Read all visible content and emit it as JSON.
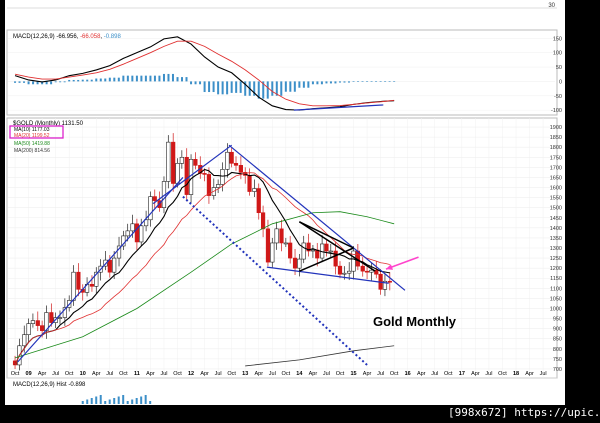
{
  "chart_data": [
    {
      "type": "line",
      "panel": "macd-top",
      "title": "MACD(12,26,9) -66.956, -66.058, -0.898",
      "legend": {
        "prefix": "MACD(12,26,9)",
        "macd": "-66.956",
        "signal": "-66.058",
        "hist": "-0.898"
      },
      "yticks": [
        "150",
        "100",
        "50",
        "0",
        "-50",
        "-100"
      ],
      "ylim": [
        -110,
        165
      ],
      "x": [
        2008.75,
        2009.0,
        2009.25,
        2009.5,
        2009.75,
        2010.0,
        2010.25,
        2010.5,
        2010.75,
        2011.0,
        2011.25,
        2011.5,
        2011.75,
        2012.0,
        2012.25,
        2012.5,
        2012.75,
        2013.0,
        2013.25,
        2013.5,
        2013.75,
        2014.0,
        2014.25,
        2014.5,
        2014.75,
        2015.0,
        2015.25,
        2015.5,
        2015.75
      ],
      "series": [
        {
          "name": "MACD",
          "color": "#000000",
          "values": [
            20,
            5,
            -2,
            5,
            20,
            28,
            40,
            55,
            80,
            100,
            120,
            148,
            155,
            130,
            85,
            50,
            30,
            -10,
            -55,
            -85,
            -98,
            -100,
            -95,
            -92,
            -88,
            -80,
            -74,
            -70,
            -67
          ]
        },
        {
          "name": "Signal",
          "color": "#e03030",
          "values": [
            25,
            15,
            8,
            8,
            15,
            22,
            30,
            42,
            60,
            80,
            100,
            122,
            140,
            140,
            122,
            95,
            70,
            40,
            5,
            -35,
            -62,
            -78,
            -85,
            -85,
            -84,
            -80,
            -75,
            -71,
            -66
          ]
        },
        {
          "name": "Histogram",
          "color": "#3c8fc8",
          "values": [
            -5,
            -10,
            -10,
            -3,
            5,
            6,
            10,
            13,
            20,
            20,
            20,
            26,
            15,
            -10,
            -37,
            -45,
            -40,
            -50,
            -60,
            -50,
            -36,
            -22,
            -10,
            -7,
            -4,
            0,
            1,
            1,
            -1
          ]
        }
      ],
      "divergence_line": {
        "x": [
          2013.9,
          2015.55
        ],
        "y": [
          -100,
          -82
        ]
      }
    },
    {
      "type": "candlestick",
      "panel": "price",
      "title": "$GOLD (Monthly) 1131.50",
      "legend_entries": [
        {
          "label": "MA(10) 1177.03",
          "color": "#000000"
        },
        {
          "label": "MA(20) 1199.52",
          "color": "#e03030"
        },
        {
          "label": "MA(50) 1419.88",
          "color": "#1a8a1a"
        },
        {
          "label": "MA(200) 814.56",
          "color": "#333333"
        }
      ],
      "annotation": "Gold Monthly",
      "yticks": [
        "1900",
        "1850",
        "1800",
        "1750",
        "1700",
        "1650",
        "1600",
        "1550",
        "1500",
        "1450",
        "1400",
        "1350",
        "1300",
        "1250",
        "1200",
        "1150",
        "1100",
        "1050",
        "1000",
        "950",
        "900",
        "850",
        "800",
        "750",
        "700"
      ],
      "ylim": [
        675,
        1925
      ],
      "xticks": [
        "Oct",
        "09",
        "Apr",
        "Jul",
        "Oct",
        "10",
        "Apr",
        "Jul",
        "Oct",
        "11",
        "Apr",
        "Jul",
        "Oct",
        "12",
        "Apr",
        "Jul",
        "Oct",
        "13",
        "Apr",
        "Jul",
        "Oct",
        "14",
        "Apr",
        "Jul",
        "Oct",
        "15",
        "Apr",
        "Jul",
        "Oct",
        "16",
        "Apr",
        "Jul",
        "Oct",
        "17",
        "Apr",
        "Jul",
        "Oct",
        "18",
        "Apr",
        "Jul"
      ],
      "x": [
        2008.75,
        2008.83,
        2008.92,
        2009.0,
        2009.08,
        2009.17,
        2009.25,
        2009.33,
        2009.42,
        2009.5,
        2009.58,
        2009.67,
        2009.75,
        2009.83,
        2009.92,
        2010.0,
        2010.08,
        2010.17,
        2010.25,
        2010.33,
        2010.42,
        2010.5,
        2010.58,
        2010.67,
        2010.75,
        2010.83,
        2010.92,
        2011.0,
        2011.08,
        2011.17,
        2011.25,
        2011.33,
        2011.42,
        2011.5,
        2011.58,
        2011.67,
        2011.75,
        2011.83,
        2011.92,
        2012.0,
        2012.08,
        2012.17,
        2012.25,
        2012.33,
        2012.42,
        2012.5,
        2012.58,
        2012.67,
        2012.75,
        2012.83,
        2012.92,
        2013.0,
        2013.08,
        2013.17,
        2013.25,
        2013.33,
        2013.42,
        2013.5,
        2013.58,
        2013.67,
        2013.75,
        2013.83,
        2013.92,
        2014.0,
        2014.08,
        2014.17,
        2014.25,
        2014.33,
        2014.42,
        2014.5,
        2014.58,
        2014.67,
        2014.75,
        2014.83,
        2014.92,
        2015.0,
        2015.08,
        2015.17,
        2015.25,
        2015.33,
        2015.42,
        2015.5,
        2015.58,
        2015.67
      ],
      "close": [
        720,
        815,
        870,
        925,
        940,
        915,
        890,
        980,
        930,
        955,
        955,
        1005,
        1040,
        1180,
        1095,
        1080,
        1120,
        1110,
        1180,
        1210,
        1240,
        1180,
        1250,
        1310,
        1360,
        1385,
        1420,
        1330,
        1410,
        1440,
        1555,
        1535,
        1500,
        1630,
        1825,
        1620,
        1720,
        1750,
        1565,
        1740,
        1710,
        1670,
        1665,
        1560,
        1600,
        1615,
        1690,
        1775,
        1720,
        1710,
        1675,
        1660,
        1580,
        1595,
        1475,
        1395,
        1230,
        1325,
        1395,
        1325,
        1325,
        1250,
        1200,
        1245,
        1325,
        1285,
        1290,
        1250,
        1320,
        1285,
        1285,
        1210,
        1170,
        1175,
        1185,
        1285,
        1210,
        1185,
        1180,
        1190,
        1170,
        1095,
        1135,
        1131
      ],
      "series": [
        {
          "name": "MA(10)",
          "color": "#000000"
        },
        {
          "name": "MA(20)",
          "color": "#e03030"
        },
        {
          "name": "MA(50)",
          "color": "#1a8a1a",
          "x": [
            2008.75,
            2010.0,
            2011.0,
            2012.0,
            2012.75,
            2013.5,
            2014.25,
            2014.75,
            2015.25,
            2015.75
          ],
          "values": [
            755,
            860,
            1000,
            1180,
            1320,
            1420,
            1475,
            1480,
            1455,
            1420
          ]
        },
        {
          "name": "MA(200)",
          "color": "#333333",
          "x": [
            2013.0,
            2014.0,
            2015.0,
            2015.75
          ],
          "values": [
            715,
            745,
            790,
            815
          ]
        }
      ],
      "trendlines": [
        {
          "x": [
            2008.8,
            2011.85
          ],
          "y": [
            735,
            1650
          ],
          "color": "#2233bb"
        },
        {
          "x": [
            2011.3,
            2012.75
          ],
          "y": [
            1520,
            1810
          ],
          "color": "#2233bb"
        },
        {
          "x": [
            2012.7,
            2015.95
          ],
          "y": [
            1810,
            1090
          ],
          "color": "#2233bb"
        },
        {
          "x": [
            2013.4,
            2015.65
          ],
          "y": [
            1205,
            1125
          ],
          "color": "#2233bb"
        },
        {
          "x": [
            2014.0,
            2015.4
          ],
          "y": [
            1430,
            1185
          ],
          "color": "#000000"
        },
        {
          "x": [
            2014.0,
            2015.0
          ],
          "y": [
            1185,
            1300
          ],
          "color": "#000000"
        },
        {
          "x": [
            2014.0,
            2015.0
          ],
          "y": [
            1430,
            1300
          ],
          "color": "#000000"
        }
      ],
      "dotted_line": {
        "x": [
          2011.85,
          2015.25
        ],
        "y": [
          1555,
          720
        ],
        "color": "#2233bb"
      },
      "arrow": {
        "x": [
          2016.2,
          2015.6
        ],
        "y": [
          1255,
          1195
        ],
        "color": "#ff44cc"
      }
    },
    {
      "type": "bar",
      "panel": "macd-bottom",
      "title": "MACD(12,26,9) Hist -0.898",
      "legend": {
        "prefix": "MACD(12,26,9)",
        "hist_label": "Hist",
        "hist": "-0.898"
      }
    }
  ],
  "macd_top_ticks": {
    "top": "30"
  },
  "footer": "[998x672] https://upic.me/"
}
